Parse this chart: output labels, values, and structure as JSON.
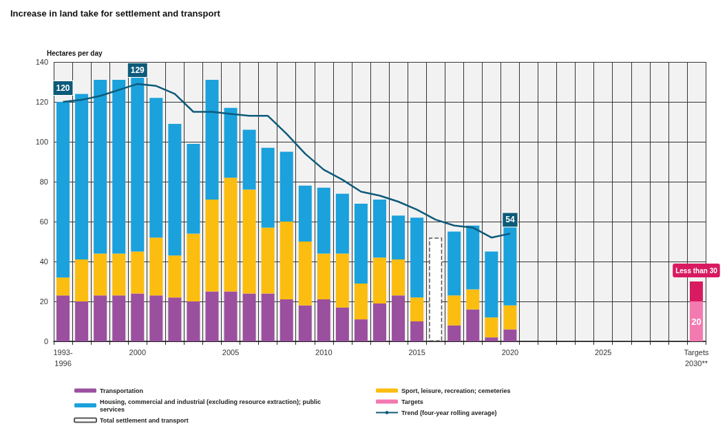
{
  "chart_data": {
    "type": "bar",
    "title": "Increase in land take for settlement and transport",
    "ylabel": "Hectares per day",
    "categories": [
      "1993-\n1996",
      null,
      null,
      null,
      "2000",
      null,
      null,
      null,
      null,
      "2005",
      null,
      null,
      null,
      null,
      "2010",
      null,
      null,
      null,
      null,
      "2015",
      null,
      null,
      null,
      null,
      "2020",
      null,
      null,
      null,
      null,
      "2025",
      null,
      null,
      null,
      null,
      "Targets\n2030**"
    ],
    "stacked": true,
    "series": [
      {
        "name": "Transportation",
        "color": "#9b4f9f",
        "values": [
          23,
          20,
          23,
          23,
          24,
          23,
          22,
          20,
          25,
          25,
          24,
          24,
          21,
          18,
          21,
          17,
          11,
          19,
          23,
          10,
          null,
          8,
          16,
          2,
          6,
          null,
          null,
          null,
          null,
          null,
          null,
          null,
          null,
          null,
          null
        ]
      },
      {
        "name": "Sport, leisure, recreation; cemeteries",
        "color": "#fbbd0f",
        "values": [
          9,
          21,
          21,
          21,
          21,
          29,
          21,
          34,
          46,
          57,
          52,
          33,
          39,
          32,
          23,
          27,
          18,
          23,
          18,
          12,
          null,
          15,
          10,
          10,
          12,
          null,
          null,
          null,
          null,
          null,
          null,
          null,
          null,
          null,
          null
        ]
      },
      {
        "name": "Housing, commercial and industrial (excluding resource extraction); public services",
        "color": "#1ba1dc",
        "values": [
          88,
          83,
          87,
          87,
          88,
          70,
          66,
          45,
          60,
          35,
          30,
          40,
          35,
          28,
          33,
          30,
          40,
          29,
          22,
          40,
          null,
          32,
          32,
          33,
          40,
          null,
          null,
          null,
          null,
          null,
          null,
          null,
          null,
          null,
          null
        ]
      },
      {
        "name": "Targets",
        "color": "#f37ab1",
        "values": [
          null,
          null,
          null,
          null,
          null,
          null,
          null,
          null,
          null,
          null,
          null,
          null,
          null,
          null,
          null,
          null,
          null,
          null,
          null,
          null,
          null,
          null,
          null,
          null,
          null,
          null,
          null,
          null,
          null,
          null,
          null,
          null,
          null,
          null,
          20
        ],
        "value_labels": [
          null,
          null,
          null,
          null,
          null,
          null,
          null,
          null,
          null,
          null,
          null,
          null,
          null,
          null,
          null,
          null,
          null,
          null,
          null,
          null,
          null,
          null,
          null,
          null,
          null,
          null,
          null,
          null,
          null,
          null,
          null,
          null,
          null,
          null,
          "20"
        ]
      },
      {
        "color": "#d81b60",
        "values": [
          null,
          null,
          null,
          null,
          null,
          null,
          null,
          null,
          null,
          null,
          null,
          null,
          null,
          null,
          null,
          null,
          null,
          null,
          null,
          null,
          null,
          null,
          null,
          null,
          null,
          null,
          null,
          null,
          null,
          null,
          null,
          null,
          null,
          null,
          10
        ],
        "value_labels": [
          null,
          null,
          null,
          null,
          null,
          null,
          null,
          null,
          null,
          null,
          null,
          null,
          null,
          null,
          null,
          null,
          null,
          null,
          null,
          null,
          null,
          null,
          null,
          null,
          null,
          null,
          null,
          null,
          null,
          null,
          null,
          null,
          null,
          null,
          "Less than 30"
        ]
      },
      {
        "name": "Total settlement and transport",
        "color": "#555555",
        "line_style": "dashed",
        "values": [
          null,
          null,
          null,
          null,
          null,
          null,
          null,
          null,
          null,
          null,
          null,
          null,
          null,
          null,
          null,
          null,
          null,
          null,
          null,
          null,
          52,
          null,
          null,
          null,
          null,
          null,
          null,
          null,
          null,
          null,
          null,
          null,
          null,
          null,
          null
        ]
      },
      {
        "name": "Trend (four-year rolling average)",
        "type": "line",
        "color": "#0d5a79",
        "marker": "none",
        "values": [
          120,
          121,
          123,
          126,
          129,
          128,
          124,
          115,
          115,
          114,
          113,
          113,
          104,
          94,
          86,
          81,
          75,
          73,
          70,
          66,
          61,
          58,
          57,
          52,
          54,
          null,
          null,
          null,
          null,
          null,
          null,
          null,
          null,
          null,
          null
        ],
        "value_labels": [
          "120",
          null,
          null,
          null,
          "129",
          null,
          null,
          null,
          null,
          null,
          null,
          null,
          null,
          null,
          null,
          null,
          null,
          null,
          null,
          null,
          null,
          null,
          null,
          null,
          "54",
          null,
          null,
          null,
          null,
          null,
          null,
          null,
          null,
          null,
          null
        ]
      }
    ],
    "ylim": [
      0,
      140
    ],
    "yticks": [
      0,
      20,
      40,
      60,
      80,
      100,
      120,
      140
    ],
    "grid": true,
    "legend": "bottom"
  }
}
